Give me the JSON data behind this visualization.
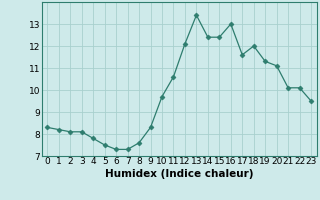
{
  "x": [
    0,
    1,
    2,
    3,
    4,
    5,
    6,
    7,
    8,
    9,
    10,
    11,
    12,
    13,
    14,
    15,
    16,
    17,
    18,
    19,
    20,
    21,
    22,
    23
  ],
  "y": [
    8.3,
    8.2,
    8.1,
    8.1,
    7.8,
    7.5,
    7.3,
    7.3,
    7.6,
    8.3,
    9.7,
    10.6,
    12.1,
    13.4,
    12.4,
    12.4,
    13.0,
    11.6,
    12.0,
    11.3,
    11.1,
    10.1,
    10.1,
    9.5
  ],
  "line_color": "#2e7d6e",
  "marker": "D",
  "marker_size": 2.5,
  "bg_color": "#ceeaea",
  "grid_color": "#a8d0ce",
  "xlabel": "Humidex (Indice chaleur)",
  "ylim": [
    7,
    14
  ],
  "xlim": [
    -0.5,
    23.5
  ],
  "yticks": [
    7,
    8,
    9,
    10,
    11,
    12,
    13
  ],
  "xticks": [
    0,
    1,
    2,
    3,
    4,
    5,
    6,
    7,
    8,
    9,
    10,
    11,
    12,
    13,
    14,
    15,
    16,
    17,
    18,
    19,
    20,
    21,
    22,
    23
  ],
  "xlabel_fontsize": 7.5,
  "tick_fontsize": 6.5
}
